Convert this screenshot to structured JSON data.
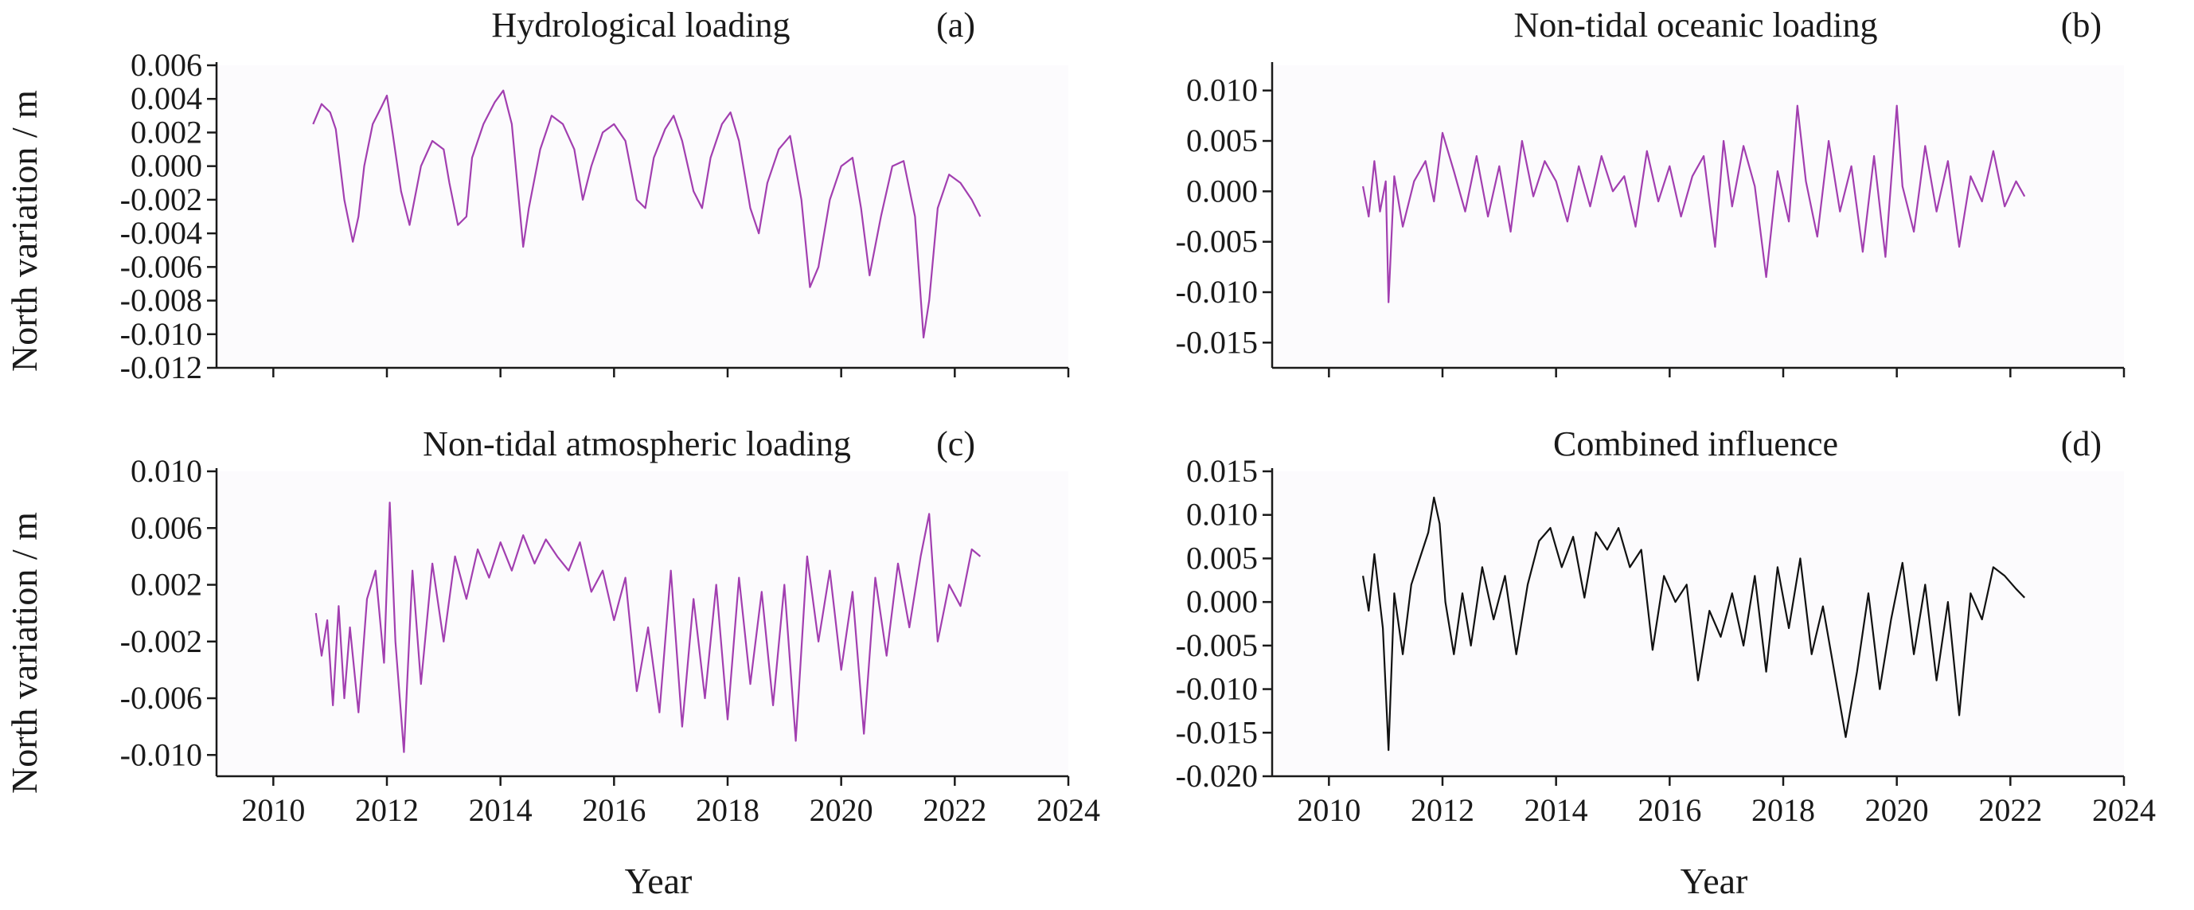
{
  "chart_data": [
    {
      "type": "line",
      "panel": "a",
      "title": "Hydrological loading",
      "panel_label": "(a)",
      "xlabel": "",
      "ylabel": "North variation / m",
      "xlim": [
        2009,
        2024
      ],
      "ylim": [
        -0.012,
        0.006
      ],
      "yticks": [
        -0.012,
        -0.01,
        -0.008,
        -0.006,
        -0.004,
        -0.002,
        0.0,
        0.002,
        0.004,
        0.006
      ],
      "ytick_labels": [
        "-0.012",
        "-0.010",
        "-0.008",
        "-0.006",
        "-0.004",
        "-0.002",
        "0.000",
        "0.002",
        "0.004",
        "0.006"
      ],
      "xticks": [
        2010,
        2012,
        2014,
        2016,
        2018,
        2020,
        2022,
        2024
      ],
      "xtick_labels": [],
      "grid": false,
      "series": [
        {
          "color": "#a23fb0",
          "x": [
            2010.7,
            2010.85,
            2011.0,
            2011.1,
            2011.25,
            2011.4,
            2011.5,
            2011.6,
            2011.75,
            2011.9,
            2012.0,
            2012.1,
            2012.25,
            2012.4,
            2012.6,
            2012.8,
            2013.0,
            2013.1,
            2013.25,
            2013.4,
            2013.5,
            2013.7,
            2013.9,
            2014.05,
            2014.2,
            2014.4,
            2014.5,
            2014.7,
            2014.9,
            2015.1,
            2015.3,
            2015.45,
            2015.6,
            2015.8,
            2016.0,
            2016.2,
            2016.4,
            2016.55,
            2016.7,
            2016.9,
            2017.05,
            2017.2,
            2017.4,
            2017.55,
            2017.7,
            2017.9,
            2018.05,
            2018.2,
            2018.4,
            2018.55,
            2018.7,
            2018.9,
            2019.1,
            2019.3,
            2019.45,
            2019.6,
            2019.8,
            2020.0,
            2020.2,
            2020.35,
            2020.5,
            2020.7,
            2020.9,
            2021.1,
            2021.3,
            2021.45,
            2021.55,
            2021.7,
            2021.9,
            2022.1,
            2022.3,
            2022.45
          ],
          "y": [
            0.0025,
            0.0037,
            0.0032,
            0.0022,
            -0.002,
            -0.0045,
            -0.003,
            0.0,
            0.0025,
            0.0035,
            0.0042,
            0.002,
            -0.0015,
            -0.0035,
            0.0,
            0.0015,
            0.001,
            -0.001,
            -0.0035,
            -0.003,
            0.0005,
            0.0025,
            0.0038,
            0.0045,
            0.0025,
            -0.0048,
            -0.0025,
            0.001,
            0.003,
            0.0025,
            0.001,
            -0.002,
            0.0,
            0.002,
            0.0025,
            0.0015,
            -0.002,
            -0.0025,
            0.0005,
            0.0022,
            0.003,
            0.0015,
            -0.0015,
            -0.0025,
            0.0005,
            0.0025,
            0.0032,
            0.0015,
            -0.0025,
            -0.004,
            -0.001,
            0.001,
            0.0018,
            -0.002,
            -0.0072,
            -0.006,
            -0.002,
            0.0,
            0.0005,
            -0.0025,
            -0.0065,
            -0.003,
            0.0,
            0.0003,
            -0.003,
            -0.0102,
            -0.008,
            -0.0025,
            -0.0005,
            -0.001,
            -0.002,
            -0.003
          ]
        }
      ]
    },
    {
      "type": "line",
      "panel": "b",
      "title": "Non-tidal oceanic loading",
      "panel_label": "(b)",
      "xlabel": "",
      "ylabel": "",
      "xlim": [
        2009,
        2024
      ],
      "ylim": [
        -0.0175,
        0.0125
      ],
      "yticks": [
        -0.015,
        -0.01,
        -0.005,
        0.0,
        0.005,
        0.01
      ],
      "ytick_labels": [
        "-0.015",
        "-0.010",
        "-0.005",
        "0.000",
        "0.005",
        "0.010"
      ],
      "xticks": [
        2010,
        2012,
        2014,
        2016,
        2018,
        2020,
        2022,
        2024
      ],
      "xtick_labels": [],
      "grid": false,
      "series": [
        {
          "color": "#a23fb0",
          "x": [
            2010.6,
            2010.7,
            2010.8,
            2010.9,
            2011.0,
            2011.05,
            2011.15,
            2011.3,
            2011.5,
            2011.7,
            2011.85,
            2012.0,
            2012.2,
            2012.4,
            2012.6,
            2012.8,
            2013.0,
            2013.2,
            2013.4,
            2013.6,
            2013.8,
            2014.0,
            2014.2,
            2014.4,
            2014.6,
            2014.8,
            2015.0,
            2015.2,
            2015.4,
            2015.6,
            2015.8,
            2016.0,
            2016.2,
            2016.4,
            2016.6,
            2016.8,
            2016.95,
            2017.1,
            2017.3,
            2017.5,
            2017.7,
            2017.9,
            2018.1,
            2018.25,
            2018.4,
            2018.6,
            2018.8,
            2019.0,
            2019.2,
            2019.4,
            2019.6,
            2019.8,
            2020.0,
            2020.1,
            2020.3,
            2020.5,
            2020.7,
            2020.9,
            2021.1,
            2021.3,
            2021.5,
            2021.7,
            2021.9,
            2022.1,
            2022.25
          ],
          "y": [
            0.0005,
            -0.0025,
            0.003,
            -0.002,
            0.001,
            -0.011,
            0.0015,
            -0.0035,
            0.001,
            0.003,
            -0.001,
            0.0058,
            0.002,
            -0.002,
            0.0035,
            -0.0025,
            0.0025,
            -0.004,
            0.005,
            -0.0005,
            0.003,
            0.001,
            -0.003,
            0.0025,
            -0.0015,
            0.0035,
            0.0,
            0.0015,
            -0.0035,
            0.004,
            -0.001,
            0.0025,
            -0.0025,
            0.0015,
            0.0035,
            -0.0055,
            0.005,
            -0.0015,
            0.0045,
            0.0005,
            -0.0085,
            0.002,
            -0.003,
            0.0085,
            0.001,
            -0.0045,
            0.005,
            -0.002,
            0.0025,
            -0.006,
            0.0035,
            -0.0065,
            0.0085,
            0.0005,
            -0.004,
            0.0045,
            -0.002,
            0.003,
            -0.0055,
            0.0015,
            -0.001,
            0.004,
            -0.0015,
            0.001,
            -0.0005
          ]
        }
      ]
    },
    {
      "type": "line",
      "panel": "c",
      "title": "Non-tidal atmospheric loading",
      "panel_label": "(c)",
      "xlabel": "Year",
      "ylabel": "North variation / m",
      "xlim": [
        2009,
        2024
      ],
      "ylim": [
        -0.0115,
        0.01
      ],
      "yticks": [
        -0.01,
        -0.006,
        -0.002,
        0.002,
        0.006,
        0.01
      ],
      "ytick_labels": [
        "-0.010",
        "-0.006",
        "-0.002",
        "0.002",
        "0.006",
        "0.010"
      ],
      "xticks": [
        2010,
        2012,
        2014,
        2016,
        2018,
        2020,
        2022,
        2024
      ],
      "xtick_labels": [
        "2010",
        "2012",
        "2014",
        "2016",
        "2018",
        "2020",
        "2022",
        "2024"
      ],
      "grid": false,
      "series": [
        {
          "color": "#a23fb0",
          "x": [
            2010.75,
            2010.85,
            2010.95,
            2011.05,
            2011.15,
            2011.25,
            2011.35,
            2011.5,
            2011.65,
            2011.8,
            2011.95,
            2012.05,
            2012.15,
            2012.3,
            2012.45,
            2012.6,
            2012.8,
            2013.0,
            2013.2,
            2013.4,
            2013.6,
            2013.8,
            2014.0,
            2014.2,
            2014.4,
            2014.6,
            2014.8,
            2015.0,
            2015.2,
            2015.4,
            2015.6,
            2015.8,
            2016.0,
            2016.2,
            2016.4,
            2016.6,
            2016.8,
            2017.0,
            2017.2,
            2017.4,
            2017.6,
            2017.8,
            2018.0,
            2018.2,
            2018.4,
            2018.6,
            2018.8,
            2019.0,
            2019.2,
            2019.4,
            2019.6,
            2019.8,
            2020.0,
            2020.2,
            2020.4,
            2020.6,
            2020.8,
            2021.0,
            2021.2,
            2021.4,
            2021.55,
            2021.7,
            2021.9,
            2022.1,
            2022.3,
            2022.45
          ],
          "y": [
            0.0,
            -0.003,
            -0.0005,
            -0.0065,
            0.0005,
            -0.006,
            -0.001,
            -0.007,
            0.001,
            0.003,
            -0.0035,
            0.0078,
            -0.002,
            -0.0098,
            0.003,
            -0.005,
            0.0035,
            -0.002,
            0.004,
            0.001,
            0.0045,
            0.0025,
            0.005,
            0.003,
            0.0055,
            0.0035,
            0.0052,
            0.004,
            0.003,
            0.005,
            0.0015,
            0.003,
            -0.0005,
            0.0025,
            -0.0055,
            -0.001,
            -0.007,
            0.003,
            -0.008,
            0.001,
            -0.006,
            0.002,
            -0.0075,
            0.0025,
            -0.005,
            0.0015,
            -0.0065,
            0.002,
            -0.009,
            0.004,
            -0.002,
            0.003,
            -0.004,
            0.0015,
            -0.0085,
            0.0025,
            -0.003,
            0.0035,
            -0.001,
            0.004,
            0.007,
            -0.002,
            0.002,
            0.0005,
            0.0045,
            0.004
          ]
        }
      ]
    },
    {
      "type": "line",
      "panel": "d",
      "title": "Combined influence",
      "panel_label": "(d)",
      "xlabel": "Year",
      "ylabel": "",
      "xlim": [
        2009,
        2024
      ],
      "ylim": [
        -0.02,
        0.015
      ],
      "yticks": [
        -0.02,
        -0.015,
        -0.01,
        -0.005,
        0.0,
        0.005,
        0.01,
        0.015
      ],
      "ytick_labels": [
        "-0.020",
        "-0.015",
        "-0.010",
        "-0.005",
        "0.000",
        "0.005",
        "0.010",
        "0.015"
      ],
      "xticks": [
        2010,
        2012,
        2014,
        2016,
        2018,
        2020,
        2022,
        2024
      ],
      "xtick_labels": [
        "2010",
        "2012",
        "2014",
        "2016",
        "2018",
        "2020",
        "2022",
        "2024"
      ],
      "grid": false,
      "series": [
        {
          "color": "#111111",
          "x": [
            2010.6,
            2010.7,
            2010.8,
            2010.95,
            2011.05,
            2011.15,
            2011.3,
            2011.45,
            2011.6,
            2011.75,
            2011.85,
            2011.95,
            2012.05,
            2012.2,
            2012.35,
            2012.5,
            2012.7,
            2012.9,
            2013.1,
            2013.3,
            2013.5,
            2013.7,
            2013.9,
            2014.1,
            2014.3,
            2014.5,
            2014.7,
            2014.9,
            2015.1,
            2015.3,
            2015.5,
            2015.7,
            2015.9,
            2016.1,
            2016.3,
            2016.5,
            2016.7,
            2016.9,
            2017.1,
            2017.3,
            2017.5,
            2017.7,
            2017.9,
            2018.1,
            2018.3,
            2018.5,
            2018.7,
            2018.9,
            2019.1,
            2019.3,
            2019.5,
            2019.7,
            2019.9,
            2020.1,
            2020.3,
            2020.5,
            2020.7,
            2020.9,
            2021.1,
            2021.3,
            2021.5,
            2021.7,
            2021.9,
            2022.1,
            2022.25
          ],
          "y": [
            0.003,
            -0.001,
            0.0055,
            -0.003,
            -0.017,
            0.001,
            -0.006,
            0.002,
            0.005,
            0.008,
            0.012,
            0.009,
            0.0,
            -0.006,
            0.001,
            -0.005,
            0.004,
            -0.002,
            0.003,
            -0.006,
            0.002,
            0.007,
            0.0085,
            0.004,
            0.0075,
            0.0005,
            0.008,
            0.006,
            0.0085,
            0.004,
            0.006,
            -0.0055,
            0.003,
            0.0,
            0.002,
            -0.009,
            -0.001,
            -0.004,
            0.001,
            -0.005,
            0.003,
            -0.008,
            0.004,
            -0.003,
            0.005,
            -0.006,
            -0.0005,
            -0.008,
            -0.0155,
            -0.008,
            0.001,
            -0.01,
            -0.002,
            0.0045,
            -0.006,
            0.002,
            -0.009,
            0.0,
            -0.013,
            0.001,
            -0.002,
            0.004,
            0.003,
            0.0015,
            0.0005
          ]
        }
      ]
    }
  ]
}
